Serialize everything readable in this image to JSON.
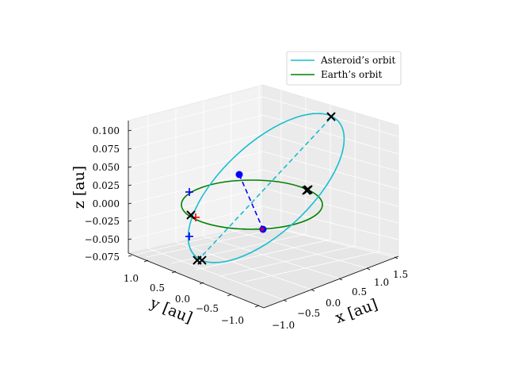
{
  "chart_data": {
    "type": "line3d",
    "title": "",
    "axes": {
      "x": {
        "label": "x [au]",
        "ticks": [
          "−1.0",
          "−0.5",
          "0.0",
          "0.5",
          "1.0",
          "1.5"
        ]
      },
      "y": {
        "label": "y [au]",
        "ticks": [
          "−1.0",
          "−0.5",
          "0.0",
          "0.5",
          "1.0"
        ]
      },
      "z": {
        "label": "z [au]",
        "ticks": [
          "−0.075",
          "−0.050",
          "−0.025",
          "0.000",
          "0.025",
          "0.050",
          "0.075",
          "0.100"
        ]
      }
    },
    "grid": true,
    "legend_position": "top-right",
    "series": [
      {
        "name": "Asteroid’s orbit",
        "color": "#17becf"
      },
      {
        "name": "Earth’s orbit",
        "color": "#008000"
      }
    ],
    "colors": {
      "asteroid": "#17becf",
      "earth": "#008000",
      "node_line": "#0000ff",
      "markers": "#000000",
      "red_marker": "#ff0000"
    }
  }
}
